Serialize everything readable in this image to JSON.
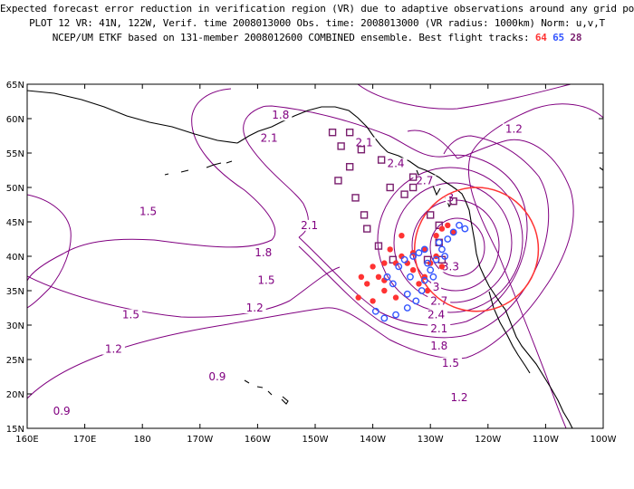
{
  "title": {
    "line1": "Expected forecast error reduction in verification region (VR) due to adaptive observations around any grid point.",
    "line2": "PLOT 12 VR: 41N, 122W, Verif. time 2008013000 Obs. time: 2008013000 (VR radius: 1000km) Norm: u,v,T",
    "line3_prefix": "NCEP/UM ETKF based on 131-member 2008012600 COMBINED ensemble.  Best flight tracks:",
    "tracks": [
      {
        "label": "64",
        "color": "#ff3333"
      },
      {
        "label": "65",
        "color": "#3355ff"
      },
      {
        "label": "28",
        "color": "#7a1f6e"
      }
    ]
  },
  "colors": {
    "contour": "#800080",
    "coast": "#000000",
    "verification_circle": "#ff3333"
  },
  "map": {
    "lat_ticks": [
      "65N",
      "60N",
      "55N",
      "50N",
      "45N",
      "40N",
      "35N",
      "30N",
      "25N",
      "20N",
      "15N"
    ],
    "lon_ticks": [
      "160E",
      "170E",
      "180",
      "170W",
      "160W",
      "150W",
      "140W",
      "130W",
      "120W",
      "110W",
      "100W"
    ]
  },
  "contour_labels": [
    {
      "text": "1.8",
      "lon": -156,
      "lat": 60.5
    },
    {
      "text": "1.2",
      "lon": -115.5,
      "lat": 58.5
    },
    {
      "text": "2.1",
      "lon": -158,
      "lat": 57.2
    },
    {
      "text": "2.1",
      "lon": -141.5,
      "lat": 56.5
    },
    {
      "text": "2.4",
      "lon": -136,
      "lat": 53.5
    },
    {
      "text": "2.7",
      "lon": -131,
      "lat": 51
    },
    {
      "text": "3",
      "lon": -126.5,
      "lat": 48.5
    },
    {
      "text": "1.5",
      "lon": -179,
      "lat": 46.5
    },
    {
      "text": "2.1",
      "lon": -151,
      "lat": 44.5
    },
    {
      "text": "1.8",
      "lon": -159,
      "lat": 40.5
    },
    {
      "text": "1.5",
      "lon": -158.5,
      "lat": 36.5
    },
    {
      "text": "1.2",
      "lon": -160.5,
      "lat": 32.5
    },
    {
      "text": "1.5",
      "lon": -182,
      "lat": 31.5
    },
    {
      "text": "1.2",
      "lon": -185,
      "lat": 26.5
    },
    {
      "text": "0.9",
      "lon": -167,
      "lat": 22.5
    },
    {
      "text": "0.9",
      "lon": -194,
      "lat": 17.5
    },
    {
      "text": "3.3",
      "lon": -126.5,
      "lat": 38.5
    },
    {
      "text": "3",
      "lon": -129,
      "lat": 35.5
    },
    {
      "text": "2.7",
      "lon": -128.5,
      "lat": 33.5
    },
    {
      "text": "2.4",
      "lon": -129,
      "lat": 31.5
    },
    {
      "text": "2.1",
      "lon": -128.5,
      "lat": 29.5
    },
    {
      "text": "1.8",
      "lon": -128.5,
      "lat": 27
    },
    {
      "text": "1.5",
      "lon": -126.5,
      "lat": 24.5
    },
    {
      "text": "1.2",
      "lon": -125,
      "lat": 19.5
    }
  ],
  "verification_region": {
    "center_lat": 41,
    "center_lon": -122,
    "radius_km": 1000
  },
  "track_points": {
    "64": [
      [
        -135,
        43
      ],
      [
        -135,
        40
      ],
      [
        -137,
        41
      ],
      [
        -136,
        39
      ],
      [
        -138,
        39
      ],
      [
        -139,
        37
      ],
      [
        -140,
        38.5
      ],
      [
        -141,
        36
      ],
      [
        -142.5,
        34
      ],
      [
        -140,
        33.5
      ],
      [
        -138,
        35
      ],
      [
        -136,
        34
      ],
      [
        -131,
        41
      ],
      [
        -130,
        39
      ],
      [
        -131,
        37
      ],
      [
        -130.5,
        35
      ],
      [
        -133,
        38
      ],
      [
        -132,
        36
      ],
      [
        -129,
        43
      ],
      [
        -128,
        44
      ],
      [
        -127,
        44.5
      ],
      [
        -126,
        43.5
      ],
      [
        -129,
        40
      ],
      [
        -128,
        38.5
      ],
      [
        -142,
        37
      ],
      [
        -138,
        36.5
      ],
      [
        -134,
        39
      ],
      [
        -133,
        40.5
      ]
    ],
    "65": [
      [
        -139.5,
        32
      ],
      [
        -138,
        31
      ],
      [
        -136,
        31.5
      ],
      [
        -134,
        32.5
      ],
      [
        -132.5,
        33.5
      ],
      [
        -131.5,
        35
      ],
      [
        -131,
        36.5
      ],
      [
        -130,
        38
      ],
      [
        -129,
        39.5
      ],
      [
        -128,
        41
      ],
      [
        -127,
        42.5
      ],
      [
        -126,
        43.5
      ],
      [
        -125,
        44.5
      ],
      [
        -124,
        44
      ],
      [
        -127.5,
        40
      ],
      [
        -128.5,
        42
      ],
      [
        -136.5,
        36
      ],
      [
        -137.5,
        37
      ],
      [
        -135.5,
        38.5
      ],
      [
        -134.5,
        39.5
      ],
      [
        -133,
        40
      ],
      [
        -132,
        40.5
      ],
      [
        -131,
        41
      ],
      [
        -130.5,
        39
      ],
      [
        -129.5,
        37
      ],
      [
        -133.5,
        37
      ],
      [
        -134,
        34.5
      ]
    ],
    "28": [
      [
        -147,
        58
      ],
      [
        -144,
        58
      ],
      [
        -145.5,
        56
      ],
      [
        -142,
        55.5
      ],
      [
        -138.5,
        54
      ],
      [
        -144,
        53
      ],
      [
        -146,
        51
      ],
      [
        -133,
        51.5
      ],
      [
        -137,
        50
      ],
      [
        -134.5,
        49
      ],
      [
        -143,
        48.5
      ],
      [
        -130,
        46
      ],
      [
        -128.5,
        44.5
      ],
      [
        -141.5,
        46
      ],
      [
        -141,
        44
      ],
      [
        -139,
        41.5
      ],
      [
        -128.5,
        42
      ],
      [
        -136.5,
        39.5
      ],
      [
        -130.5,
        39.5
      ],
      [
        -128,
        39.5
      ],
      [
        -133,
        50
      ],
      [
        -126,
        48
      ]
    ]
  }
}
